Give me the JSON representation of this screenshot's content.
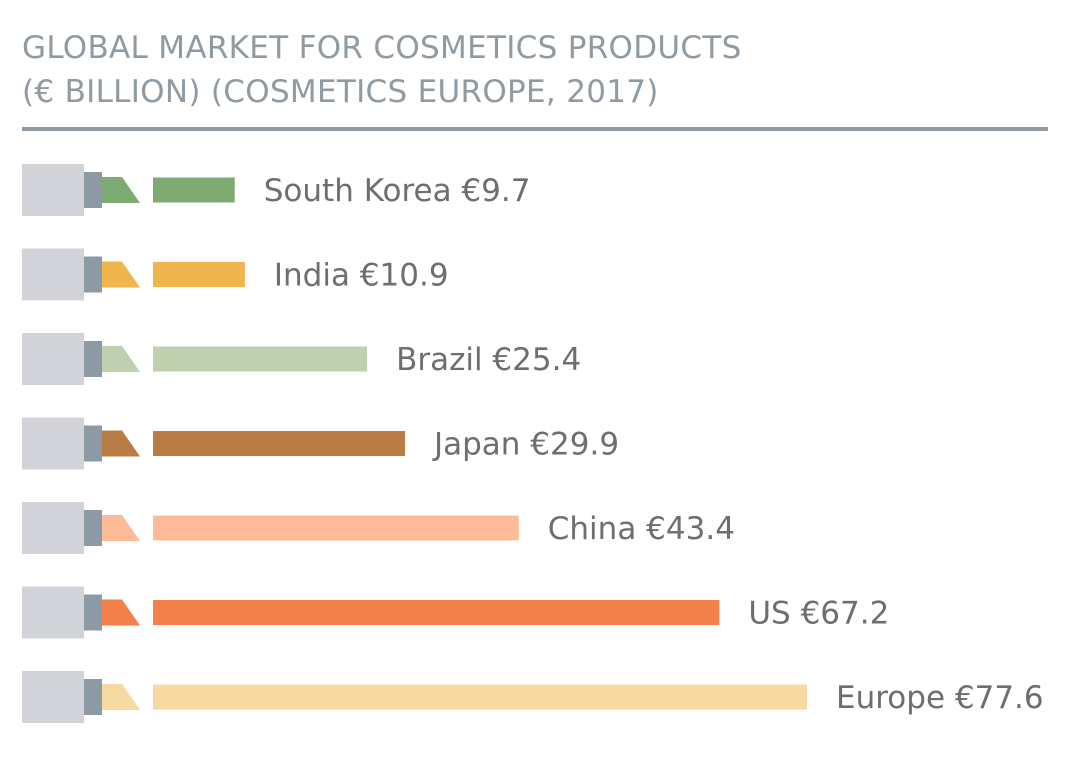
{
  "chart_data": {
    "type": "bar",
    "orientation": "horizontal",
    "title_lines": [
      "GLOBAL MARKET FOR COSMETICS PRODUCTS",
      "(€ BILLION) (COSMETICS EUROPE, 2017)"
    ],
    "xlabel": "",
    "ylabel": "",
    "grid": false,
    "xlim": [
      0,
      77.6
    ],
    "categories": [
      "South Korea",
      "India",
      "Brazil",
      "Japan",
      "China",
      "US",
      "Europe"
    ],
    "values": [
      9.7,
      10.9,
      25.4,
      29.9,
      43.4,
      67.2,
      77.6
    ],
    "data_labels": [
      "South Korea €9.7",
      "India €10.9",
      "Brazil €25.4",
      "Japan €29.9",
      "China €43.4",
      "US €67.2",
      "Europe €77.6"
    ],
    "colors": [
      "#7dab72",
      "#f0b54c",
      "#bfd0b1",
      "#b97c45",
      "#fdbb98",
      "#f4804b",
      "#f7d9a2"
    ],
    "lipstick_case_color": "#d1d3d8",
    "lipstick_band_color": "#8b9aa5"
  }
}
